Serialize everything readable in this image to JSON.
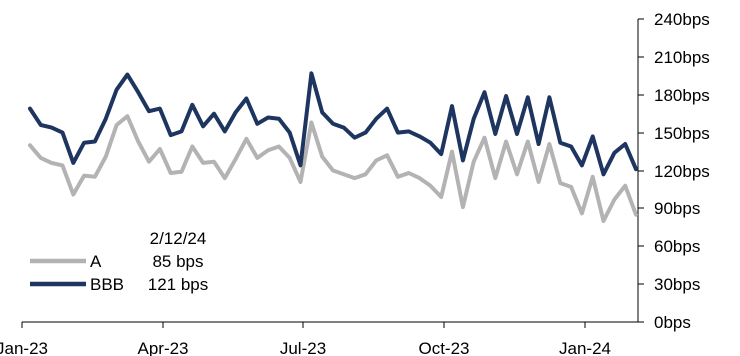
{
  "chart_data": {
    "type": "line",
    "title": "",
    "xlabel": "",
    "ylabel": "",
    "x_ticks": [
      "Jan-23",
      "Apr-23",
      "Jul-23",
      "Oct-23",
      "Jan-24"
    ],
    "y_ticks": [
      "0bps",
      "30bps",
      "60bps",
      "90bps",
      "120bps",
      "150bps",
      "180bps",
      "210bps",
      "240bps"
    ],
    "ylim": [
      0,
      240
    ],
    "y_axis_side": "right",
    "grid": false,
    "annotation": {
      "date": "2/12/24",
      "values": [
        "85 bps",
        "121 bps"
      ]
    },
    "legend_position": "bottom-left",
    "series": [
      {
        "name": "A",
        "color": "#b3b3b3",
        "values": [
          140,
          130,
          126,
          124,
          101,
          116,
          115,
          131,
          156,
          163,
          143,
          127,
          137,
          118,
          119,
          139,
          126,
          127,
          114,
          129,
          145,
          130,
          136,
          139,
          130,
          111,
          158,
          131,
          120,
          117,
          114,
          117,
          128,
          132,
          115,
          118,
          114,
          108,
          99,
          135,
          91,
          127,
          146,
          114,
          143,
          117,
          143,
          111,
          141,
          110,
          107,
          86,
          115,
          80,
          97,
          108,
          85
        ]
      },
      {
        "name": "BBB",
        "color": "#1e3560",
        "values": [
          169,
          156,
          154,
          150,
          126,
          142,
          143,
          161,
          184,
          196,
          182,
          167,
          169,
          148,
          151,
          172,
          155,
          165,
          151,
          166,
          177,
          157,
          162,
          161,
          150,
          124,
          197,
          166,
          157,
          154,
          146,
          150,
          161,
          169,
          150,
          151,
          147,
          142,
          133,
          171,
          128,
          161,
          182,
          149,
          179,
          149,
          178,
          141,
          178,
          142,
          139,
          124,
          147,
          117,
          134,
          141,
          121
        ]
      }
    ]
  }
}
